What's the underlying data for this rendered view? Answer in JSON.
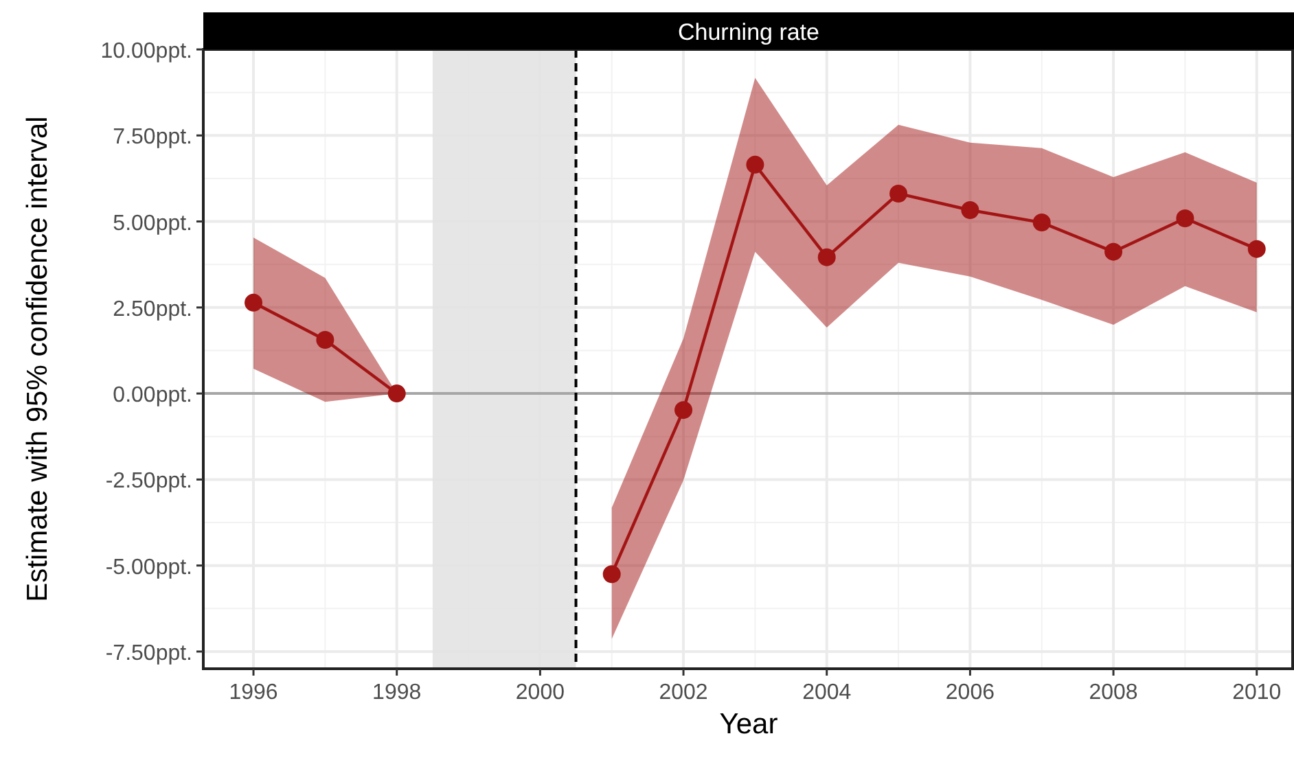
{
  "chart_data": {
    "type": "line",
    "title": "Churning rate",
    "xlabel": "Year",
    "ylabel": "Estimate with 95% confidence interval",
    "x": [
      1996,
      1997,
      1998,
      1999,
      2000,
      2001,
      2002,
      2003,
      2004,
      2005,
      2006,
      2007,
      2008,
      2009,
      2010
    ],
    "series": [
      {
        "color": "#a31515",
        "values": [
          2.64,
          1.56,
          0,
          null,
          null,
          -5.25,
          -0.48,
          6.65,
          3.96,
          5.81,
          5.33,
          4.97,
          4.12,
          5.09,
          4.2
        ],
        "lower": [
          0.72,
          -0.24,
          0,
          null,
          null,
          -7.13,
          -2.52,
          4.12,
          1.92,
          3.8,
          3.4,
          2.72,
          2.0,
          3.12,
          2.36
        ],
        "upper": [
          4.53,
          3.36,
          0,
          null,
          null,
          -3.32,
          1.6,
          9.17,
          6.05,
          7.81,
          7.29,
          7.13,
          6.29,
          7.01,
          6.13
        ]
      }
    ],
    "xlim": [
      1995.3,
      2010.52
    ],
    "ylim": [
      -8.0,
      10.0
    ],
    "xticks": [
      1996,
      1998,
      2000,
      2002,
      2004,
      2006,
      2008,
      2010
    ],
    "yticks": [
      {
        "value": -7.5,
        "label": "-7.50ppt."
      },
      {
        "value": -5,
        "label": "-5.00ppt."
      },
      {
        "value": -2.5,
        "label": "-2.50ppt."
      },
      {
        "value": 0,
        "label": "0.00ppt."
      },
      {
        "value": 2.5,
        "label": "2.50ppt."
      },
      {
        "value": 5,
        "label": "5.00ppt."
      },
      {
        "value": 7.5,
        "label": "7.50ppt."
      },
      {
        "value": 10,
        "label": "10.00ppt."
      }
    ],
    "grid": true,
    "marker": "circle",
    "line_style": "solid",
    "ref_lines": [
      {
        "axis": "y",
        "value": 0,
        "color": "#a6a6a6",
        "line_style": "solid"
      },
      {
        "axis": "x",
        "value": 2000.5,
        "color": "#000000",
        "line_style": "dashed"
      }
    ],
    "bands": [
      {
        "axis": "x",
        "from": 1998.5,
        "to": 2000.5,
        "color": "#e3e3e3"
      }
    ]
  }
}
